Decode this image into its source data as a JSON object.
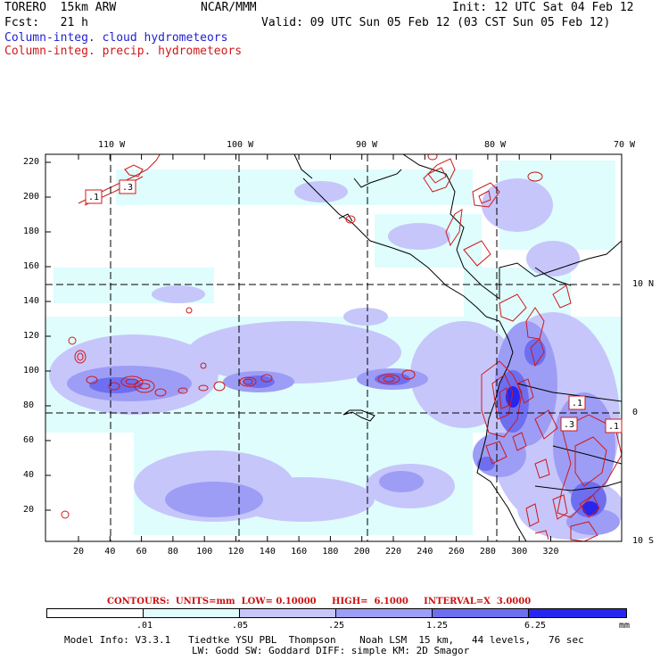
{
  "header": {
    "model": "TORERO  15km ARW",
    "org": "NCAR/MMM",
    "init": "Init: 12 UTC Sat 04 Feb 12",
    "fcst": "Fcst:   21 h",
    "valid": "Valid: 09 UTC Sun 05 Feb 12 (03 CST Sun 05 Feb 12)",
    "legend_cloud": "Column-integ. cloud hydrometeors",
    "legend_precip": "Column-integ. precip. hydrometeors"
  },
  "colors": {
    "cloud_blue": "#1f1fd0",
    "precip_red": "#d01818",
    "level1": "#dffdfd",
    "level2": "#c6c6fb",
    "level3": "#9d9df6",
    "level4": "#6e6ef0",
    "level5": "#2626ee"
  },
  "map": {
    "top_lon_labels": [
      "110 W",
      "100 W",
      "90 W",
      "80 W",
      "70 W"
    ],
    "right_lat_labels": [
      "10 N",
      "0",
      "10 S"
    ],
    "y_ticks": [
      "220",
      "200",
      "180",
      "160",
      "140",
      "120",
      "100",
      "80",
      "60",
      "40",
      "20"
    ],
    "x_ticks": [
      "20",
      "40",
      "60",
      "80",
      "100",
      "120",
      "140",
      "160",
      "180",
      "200",
      "220",
      "240",
      "260",
      "280",
      "300",
      "320"
    ],
    "box_labels": [
      ".1",
      ".3",
      ".1",
      ".3",
      ".1"
    ]
  },
  "contours_info": "CONTOURS:  UNITS=mm  LOW= 0.10000     HIGH=  6.1000     INTERVAL=X  3.0000",
  "colorbar": {
    "labels": [
      ".01",
      ".05",
      ".25",
      "1.25",
      "6.25"
    ],
    "unit": "mm"
  },
  "footer": {
    "line1": "Model Info: V3.3.1   Tiedtke YSU PBL  Thompson    Noah LSM  15 km,   44 levels,   76 sec",
    "line2": "LW: Godd SW: Goddard DIFF: simple KM: 2D Smagor"
  }
}
